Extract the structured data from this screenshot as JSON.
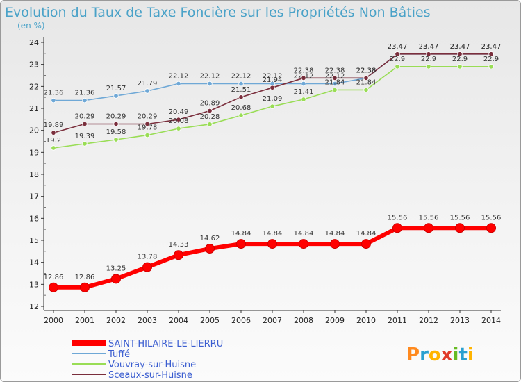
{
  "chart_data": {
    "type": "line",
    "title": "Evolution du Taux de Taxe Foncière sur les Propriétés Non Bâties",
    "subtitle": "(en %)",
    "x": [
      "2000",
      "2001",
      "2002",
      "2003",
      "2004",
      "2005",
      "2006",
      "2007",
      "2008",
      "2009",
      "2010",
      "2011",
      "2012",
      "2013",
      "2014"
    ],
    "ylim": [
      12,
      24
    ],
    "yticks": [
      "12",
      "13",
      "14",
      "15",
      "16",
      "17",
      "18",
      "19",
      "20",
      "21",
      "22",
      "23",
      "24"
    ],
    "grid": false,
    "legend_position": "bottom-left",
    "series": [
      {
        "name": "SAINT-HILAIRE-LE-LIERRU",
        "color": "#ff0000",
        "values": [
          12.86,
          12.86,
          13.25,
          13.78,
          14.33,
          14.62,
          14.84,
          14.84,
          14.84,
          14.84,
          14.84,
          15.56,
          15.56,
          15.56,
          15.56
        ],
        "labels": [
          "12.86",
          "12.86",
          "13.25",
          "13.78",
          "14.33",
          "14.62",
          "14.84",
          "14.84",
          "14.84",
          "14.84",
          "14.84",
          "15.56",
          "15.56",
          "15.56",
          "15.56"
        ]
      },
      {
        "name": "Tuffé",
        "color": "#6fa8d6",
        "values": [
          21.36,
          21.36,
          21.57,
          21.79,
          22.12,
          22.12,
          22.12,
          22.12,
          22.12,
          22.12,
          22.38,
          23.47,
          23.47,
          23.47,
          23.47
        ],
        "labels": [
          "21.36",
          "21.36",
          "21.57",
          "21.79",
          "22.12",
          "22.12",
          "22.12",
          "22.12",
          "22.12",
          "22.12",
          "22.38",
          "23.47",
          "23.47",
          "23.47",
          "23.47"
        ]
      },
      {
        "name": "Vouvray-sur-Huisne",
        "color": "#99dd55",
        "values": [
          19.2,
          19.39,
          19.58,
          19.78,
          20.08,
          20.28,
          20.68,
          21.09,
          21.41,
          21.84,
          21.84,
          22.9,
          22.9,
          22.9,
          22.9
        ],
        "labels": [
          "19.2",
          "19.39",
          "19.58",
          "19.78",
          "20.08",
          "20.28",
          "20.68",
          "21.09",
          "21.41",
          "21.84",
          "21.84",
          "22.9",
          "22.9",
          "22.9",
          "22.9"
        ]
      },
      {
        "name": "Sceaux-sur-Huisne",
        "color": "#7a2e3c",
        "values": [
          19.89,
          20.29,
          20.29,
          20.29,
          20.49,
          20.89,
          21.51,
          21.94,
          22.38,
          22.38,
          22.38,
          23.47,
          23.47,
          23.47,
          23.47
        ],
        "labels": [
          "19.89",
          "20.29",
          "20.29",
          "20.29",
          "20.49",
          "20.89",
          "21.51",
          "21.94",
          "22.38",
          "22.38",
          "22.38",
          "23.47",
          "23.47",
          "23.47",
          "23.47"
        ]
      }
    ]
  },
  "logo": {
    "text": "Proxiti",
    "letters": [
      "P",
      "r",
      "o",
      "x",
      "i",
      "t",
      "i"
    ],
    "colors": [
      "#ff8a1f",
      "#2aa0d0",
      "#ffb400",
      "#e03a2a",
      "#66bb22",
      "#2aa0d0",
      "#ffb400"
    ]
  }
}
